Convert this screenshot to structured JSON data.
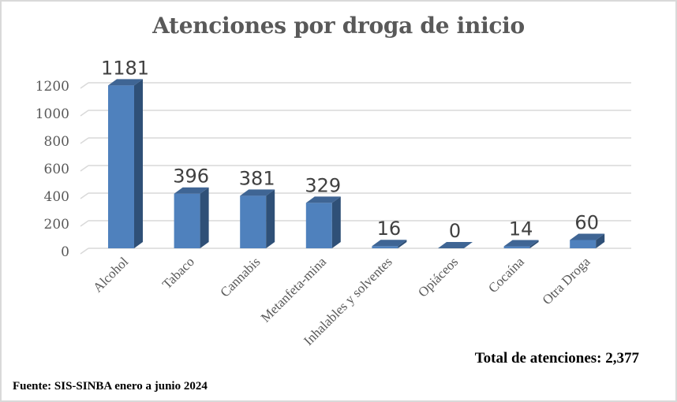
{
  "chart_data": {
    "type": "bar",
    "title": "Atenciones por droga de inicio",
    "categories": [
      "Alcohol",
      "Tabaco",
      "Cannabis",
      "Metanfeta-mina",
      "Inhalables y solventes",
      "Opiáceos",
      "Cocaína",
      "Otra Droga"
    ],
    "series": [
      {
        "name": "Atenciones",
        "values": [
          1181,
          396,
          381,
          329,
          16,
          0,
          14,
          60
        ]
      }
    ],
    "data_labels": [
      "1181",
      "396",
      "381",
      "329",
      "16",
      "0",
      "14",
      "60"
    ],
    "yticks": [
      0,
      200,
      400,
      600,
      800,
      1000,
      1200
    ],
    "ytick_labels": [
      "0",
      "200",
      "400",
      "600",
      "800",
      "1000",
      "1200"
    ],
    "ylim": [
      0,
      1200
    ],
    "xlabel": "",
    "ylabel": "",
    "grid": true,
    "legend": "none",
    "colors": {
      "bar_front": "#4f81bd",
      "bar_top": "#3f6594",
      "bar_side": "#2f5077",
      "grid": "#d9d9d9",
      "tick_text": "#595959",
      "label_text": "#404040"
    }
  },
  "annotations": {
    "total": "Total de atenciones: 2,377",
    "source": "Fuente: SIS-SINBA enero a junio 2024"
  }
}
